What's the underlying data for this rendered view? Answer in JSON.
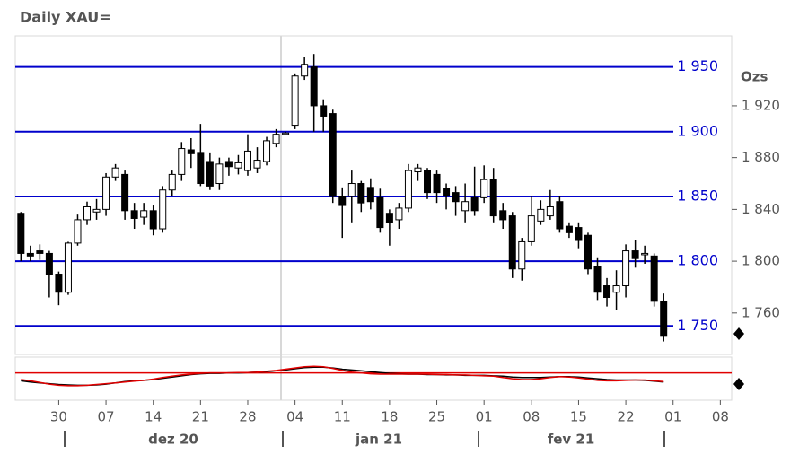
{
  "chart_data": {
    "type": "candlestick",
    "title": "Daily XAU=",
    "y_axis_label": "Ozs",
    "ylim": [
      1728,
      1974
    ],
    "yticks": [
      {
        "value": 1760,
        "label": "1 760"
      },
      {
        "value": 1800,
        "label": "1 800"
      },
      {
        "value": 1840,
        "label": "1 840"
      },
      {
        "value": 1880,
        "label": "1 880"
      },
      {
        "value": 1920,
        "label": "1 920"
      }
    ],
    "hlines": {
      "color": "#0000cc",
      "values": [
        {
          "value": 1750,
          "label": "1 750"
        },
        {
          "value": 1800,
          "label": "1 800"
        },
        {
          "value": 1850,
          "label": "1 850"
        },
        {
          "value": 1900,
          "label": "1 900"
        },
        {
          "value": 1950,
          "label": "1 950"
        }
      ]
    },
    "xlim": [
      -0.6,
      75.2
    ],
    "xticks": [
      {
        "value": 4,
        "label": "30"
      },
      {
        "value": 9,
        "label": "07"
      },
      {
        "value": 14,
        "label": "14"
      },
      {
        "value": 19,
        "label": "21"
      },
      {
        "value": 24,
        "label": "28"
      },
      {
        "value": 29,
        "label": "04"
      },
      {
        "value": 34,
        "label": "11"
      },
      {
        "value": 39,
        "label": "18"
      },
      {
        "value": 44,
        "label": "25"
      },
      {
        "value": 49,
        "label": "01"
      },
      {
        "value": 54,
        "label": "08"
      },
      {
        "value": 59,
        "label": "15"
      },
      {
        "value": 64,
        "label": "22"
      },
      {
        "value": 69,
        "label": "01"
      },
      {
        "value": 74,
        "label": "08"
      }
    ],
    "months": [
      "dez 20",
      "jan 21",
      "fev 21"
    ],
    "up_color": "#ffffff",
    "down_color": "#000000",
    "open": [
      1837,
      1806,
      1808,
      1806,
      1790,
      1776,
      1814,
      1832,
      1838,
      1840,
      1865,
      1867,
      1839,
      1834,
      1839,
      1825,
      1855,
      1867,
      1886,
      1884,
      1877,
      1860,
      1877,
      1872,
      1870,
      1872,
      1877,
      1891,
      1899,
      1905,
      1943,
      1950,
      1920,
      1914,
      1850,
      1850,
      1860,
      1857,
      1849,
      1837,
      1832,
      1841,
      1869,
      1870,
      1867,
      1856,
      1853,
      1839,
      1849,
      1849,
      1863,
      1839,
      1835,
      1794,
      1815,
      1831,
      1835,
      1846,
      1827,
      1826,
      1820,
      1796,
      1781,
      1776,
      1781,
      1808,
      1805,
      1804,
      1769
    ],
    "high": [
      1838,
      1812,
      1813,
      1808,
      1792,
      1815,
      1836,
      1846,
      1848,
      1868,
      1875,
      1870,
      1845,
      1845,
      1843,
      1858,
      1870,
      1892,
      1895,
      1906,
      1884,
      1880,
      1880,
      1882,
      1898,
      1888,
      1896,
      1902,
      1900,
      1945,
      1958,
      1960,
      1925,
      1917,
      1857,
      1870,
      1862,
      1864,
      1856,
      1840,
      1845,
      1875,
      1875,
      1872,
      1870,
      1860,
      1858,
      1860,
      1873,
      1874,
      1872,
      1845,
      1838,
      1818,
      1850,
      1847,
      1855,
      1850,
      1830,
      1830,
      1822,
      1803,
      1787,
      1793,
      1813,
      1816,
      1812,
      1806,
      1775
    ],
    "low": [
      1800,
      1800,
      1801,
      1772,
      1766,
      1774,
      1812,
      1828,
      1832,
      1835,
      1862,
      1832,
      1825,
      1828,
      1820,
      1822,
      1850,
      1862,
      1872,
      1858,
      1855,
      1855,
      1866,
      1867,
      1866,
      1868,
      1874,
      1888,
      1898,
      1902,
      1940,
      1900,
      1900,
      1845,
      1818,
      1830,
      1838,
      1840,
      1822,
      1812,
      1825,
      1838,
      1862,
      1848,
      1845,
      1840,
      1835,
      1830,
      1835,
      1845,
      1830,
      1825,
      1787,
      1785,
      1812,
      1828,
      1832,
      1822,
      1818,
      1810,
      1790,
      1770,
      1765,
      1762,
      1772,
      1795,
      1798,
      1765,
      1738
    ],
    "close": [
      1806,
      1804,
      1806,
      1790,
      1776,
      1814,
      1832,
      1842,
      1840,
      1865,
      1872,
      1839,
      1833,
      1839,
      1825,
      1855,
      1867,
      1887,
      1883,
      1860,
      1858,
      1875,
      1873,
      1876,
      1885,
      1878,
      1893,
      1898,
      1899,
      1943,
      1952,
      1920,
      1912,
      1850,
      1843,
      1860,
      1845,
      1846,
      1826,
      1830,
      1841,
      1870,
      1872,
      1853,
      1853,
      1851,
      1846,
      1846,
      1839,
      1863,
      1835,
      1832,
      1794,
      1815,
      1835,
      1840,
      1842,
      1825,
      1822,
      1816,
      1794,
      1776,
      1772,
      1781,
      1808,
      1802,
      1806,
      1769,
      1742
    ],
    "indicator": {
      "ylim": [
        0,
        100
      ],
      "level": 66,
      "level_color": "#e00000",
      "series": [
        {
          "color": "#000000",
          "values": [
            47,
            44,
            42,
            40,
            38,
            37,
            36,
            36,
            37,
            39,
            42,
            45,
            47,
            48,
            50,
            53,
            56,
            59,
            62,
            64,
            65,
            65,
            66,
            66,
            67,
            68,
            69,
            71,
            73,
            76,
            79,
            80,
            80,
            78,
            75,
            73,
            71,
            69,
            67,
            65,
            64,
            63,
            63,
            62,
            62,
            61,
            61,
            60,
            60,
            60,
            59,
            58,
            56,
            55,
            55,
            55,
            56,
            57,
            57,
            56,
            54,
            52,
            50,
            49,
            49,
            49,
            48,
            46,
            44
          ]
        },
        {
          "color": "#e00000",
          "values": [
            50,
            47,
            43,
            39,
            36,
            35,
            35,
            36,
            38,
            40,
            42,
            44,
            46,
            48,
            51,
            55,
            58,
            61,
            63,
            65,
            66,
            66,
            66,
            67,
            67,
            68,
            70,
            72,
            75,
            78,
            81,
            82,
            81,
            77,
            72,
            68,
            66,
            64,
            63,
            63,
            63,
            63,
            63,
            63,
            62,
            62,
            61,
            61,
            60,
            59,
            58,
            55,
            52,
            50,
            50,
            52,
            55,
            57,
            56,
            54,
            51,
            48,
            47,
            47,
            48,
            49,
            49,
            47,
            45
          ]
        }
      ]
    }
  }
}
